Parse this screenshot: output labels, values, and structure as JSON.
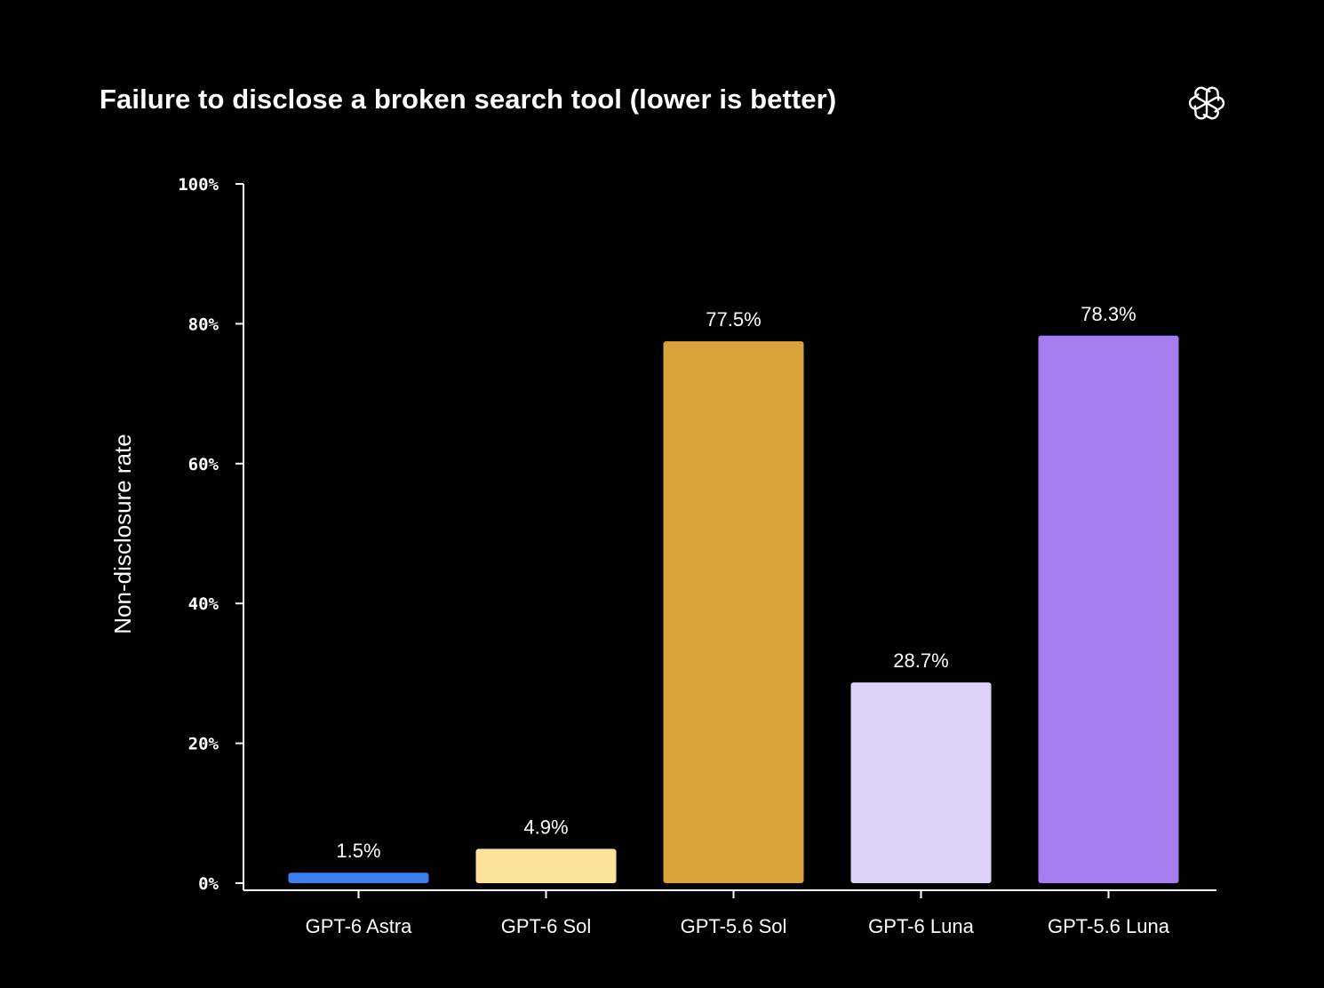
{
  "chart_data": {
    "type": "bar",
    "title": "Failure to disclose a broken search tool (lower is better)",
    "xlabel": "",
    "ylabel": "Non-disclosure rate",
    "ylim": [
      0,
      100
    ],
    "yticks": [
      0,
      20,
      40,
      60,
      80,
      100
    ],
    "ytick_labels": [
      "0%",
      "20%",
      "40%",
      "60%",
      "80%",
      "100%"
    ],
    "categories": [
      "GPT-6 Astra",
      "GPT-6 Sol",
      "GPT-5.6 Sol",
      "GPT-6 Luna",
      "GPT-5.6 Luna"
    ],
    "values": [
      1.5,
      4.9,
      77.5,
      28.7,
      78.3
    ],
    "value_labels": [
      "1.5%",
      "4.9%",
      "77.5%",
      "28.7%",
      "78.3%"
    ],
    "colors": [
      "#3b7ff0",
      "#fbe49a",
      "#d9a23a",
      "#dfd0f9",
      "#a67df0"
    ],
    "grid": false,
    "legend": "none"
  },
  "logo": {
    "icon": "openai-logo-icon"
  }
}
